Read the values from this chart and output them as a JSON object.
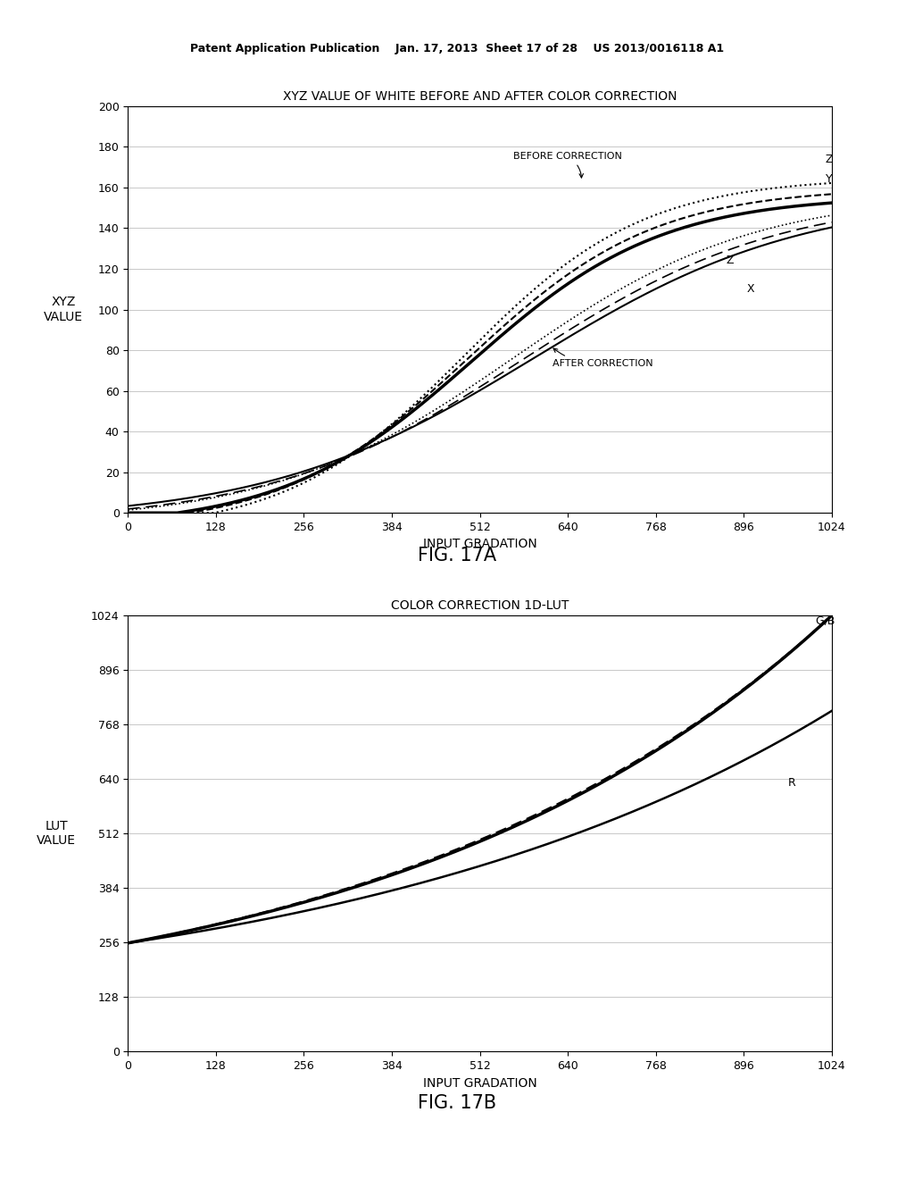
{
  "fig17a": {
    "title": "XYZ VALUE OF WHITE BEFORE AND AFTER COLOR CORRECTION",
    "xlabel": "INPUT GRADATION",
    "ylabel": "XYZ\nVALUE",
    "xlim": [
      0,
      1024
    ],
    "ylim": [
      0,
      200
    ],
    "xticks": [
      0,
      128,
      256,
      384,
      512,
      640,
      768,
      896,
      1024
    ],
    "yticks": [
      0,
      20,
      40,
      60,
      80,
      100,
      120,
      140,
      160,
      180,
      200
    ],
    "annotation_before": "BEFORE CORRECTION",
    "annotation_after": "AFTER CORRECTION",
    "label_Z_before": "Z",
    "label_Y_before": "Y",
    "label_Z_after": "Z",
    "label_X_after": "X"
  },
  "fig17b": {
    "title": "COLOR CORRECTION 1D-LUT",
    "xlabel": "INPUT GRADATION",
    "ylabel": "LUT\nVALUE",
    "xlim": [
      0,
      1024
    ],
    "ylim": [
      0,
      1024
    ],
    "xticks": [
      0,
      128,
      256,
      384,
      512,
      640,
      768,
      896,
      1024
    ],
    "yticks": [
      0,
      128,
      256,
      384,
      512,
      640,
      768,
      896,
      1024
    ],
    "label_GB": "G,B",
    "label_R": "R"
  },
  "header_text": "Patent Application Publication    Jan. 17, 2013  Sheet 17 of 28    US 2013/0016118 A1",
  "fig17a_label": "FIG. 17A",
  "fig17b_label": "FIG. 17B",
  "background_color": "#ffffff",
  "line_color": "#000000"
}
